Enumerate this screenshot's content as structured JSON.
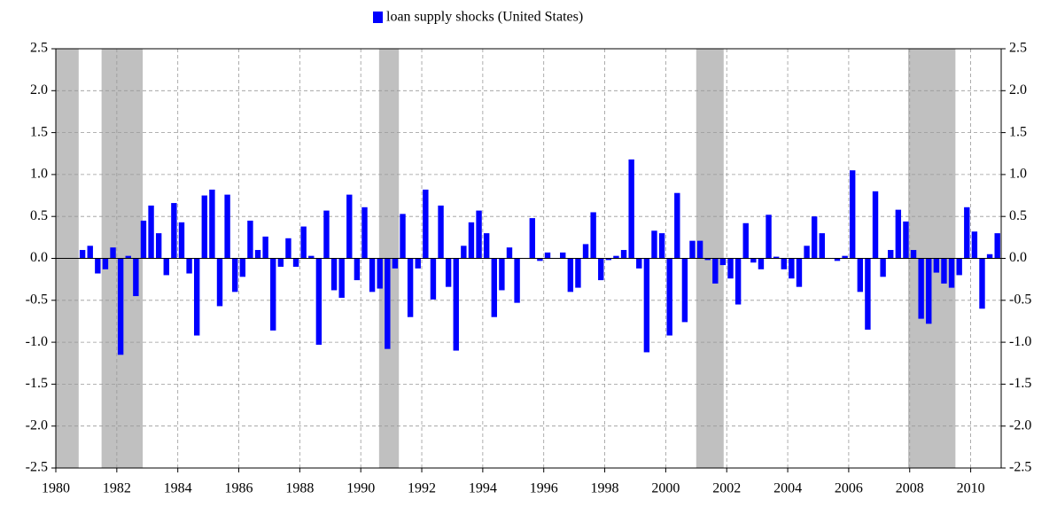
{
  "chart_data": {
    "type": "bar",
    "series": [
      {
        "name": "loan supply shocks (United States)",
        "color": "#0000ff",
        "values": [
          0.1,
          0.15,
          -0.18,
          -0.13,
          0.13,
          -1.15,
          0.03,
          -0.45,
          0.45,
          0.63,
          0.3,
          -0.2,
          0.66,
          0.43,
          -0.18,
          -0.92,
          0.75,
          0.82,
          -0.57,
          0.76,
          -0.4,
          -0.22,
          0.45,
          0.1,
          0.26,
          -0.86,
          -0.1,
          0.24,
          -0.1,
          0.38,
          0.03,
          -1.03,
          0.57,
          -0.38,
          -0.47,
          0.76,
          -0.26,
          0.61,
          -0.4,
          -0.36,
          -1.08,
          -0.12,
          0.53,
          -0.7,
          -0.12,
          0.82,
          -0.49,
          0.63,
          -0.34,
          -1.1,
          0.15,
          0.43,
          0.57,
          0.3,
          -0.7,
          -0.38,
          0.13,
          -0.53,
          0.48,
          -0.03,
          0.07,
          0.07,
          -0.4,
          -0.35,
          0.17,
          0.55,
          -0.26,
          -0.02,
          0.03,
          0.1,
          1.18,
          -0.12,
          -1.12,
          0.33,
          0.3,
          -0.92,
          0.78,
          -0.76,
          0.21,
          0.21,
          -0.02,
          -0.3,
          -0.08,
          -0.24,
          -0.55,
          0.42,
          -0.05,
          -0.13,
          0.52,
          0.02,
          -0.13,
          -0.24,
          -0.34,
          0.15,
          0.5,
          0.3,
          -0.03,
          0.03,
          1.05,
          -0.4,
          -0.85,
          0.8,
          -0.22,
          0.1,
          0.58,
          0.44,
          0.1,
          -0.72,
          -0.78,
          -0.17,
          -0.3,
          -0.35,
          -0.2,
          0.61,
          0.32,
          -0.6,
          0.05,
          0.3
        ]
      }
    ],
    "x": [
      1980.875,
      1981.125,
      1981.375,
      1981.625,
      1981.875,
      1982.125,
      1982.375,
      1982.625,
      1982.875,
      1983.125,
      1983.375,
      1983.625,
      1983.875,
      1984.125,
      1984.375,
      1984.625,
      1984.875,
      1985.125,
      1985.375,
      1985.625,
      1985.875,
      1986.125,
      1986.375,
      1986.625,
      1986.875,
      1987.125,
      1987.375,
      1987.625,
      1987.875,
      1988.125,
      1988.375,
      1988.625,
      1988.875,
      1989.125,
      1989.375,
      1989.625,
      1989.875,
      1990.125,
      1990.375,
      1990.625,
      1990.875,
      1991.125,
      1991.375,
      1991.625,
      1991.875,
      1992.125,
      1992.375,
      1992.625,
      1992.875,
      1993.125,
      1993.375,
      1993.625,
      1993.875,
      1994.125,
      1994.375,
      1994.625,
      1994.875,
      1995.125,
      1995.625,
      1995.875,
      1996.125,
      1996.625,
      1996.875,
      1997.125,
      1997.375,
      1997.625,
      1997.875,
      1998.125,
      1998.375,
      1998.625,
      1998.875,
      1999.125,
      1999.375,
      1999.625,
      1999.875,
      2000.125,
      2000.375,
      2000.625,
      2000.875,
      2001.125,
      2001.375,
      2001.625,
      2001.875,
      2002.125,
      2002.375,
      2002.625,
      2002.875,
      2003.125,
      2003.375,
      2003.625,
      2003.875,
      2004.125,
      2004.375,
      2004.625,
      2004.875,
      2005.125,
      2005.625,
      2005.875,
      2006.125,
      2006.375,
      2006.625,
      2006.875,
      2007.125,
      2007.375,
      2007.625,
      2007.875,
      2008.125,
      2008.375,
      2008.625,
      2008.875,
      2009.125,
      2009.375,
      2009.625,
      2009.875,
      2010.125,
      2010.375,
      2010.625,
      2010.875
    ],
    "shaded_periods": [
      [
        1980,
        1980.75
      ],
      [
        1981.5,
        1982.85
      ],
      [
        1990.6,
        1991.25
      ],
      [
        2001,
        2001.9
      ],
      [
        2007.95,
        2009.5
      ]
    ],
    "shade_color": "#c0c0c0",
    "xlim": [
      1980,
      2011
    ],
    "xticks": [
      1980,
      1982,
      1984,
      1986,
      1988,
      1990,
      1992,
      1994,
      1996,
      1998,
      2000,
      2002,
      2004,
      2006,
      2008,
      2010
    ],
    "ylim": [
      -2.5,
      2.5
    ],
    "yticks": [
      -2.5,
      {
        "value": -2,
        "label": "-2.0"
      },
      -1.5,
      {
        "value": -1,
        "label": "-1.0"
      },
      -0.5,
      {
        "value": 0,
        "label": "0.0"
      },
      0.5,
      {
        "value": 1,
        "label": "1.0"
      },
      1.5,
      {
        "value": 2,
        "label": "2.0"
      },
      2.5
    ],
    "y2lim": [
      -2.5,
      2.5
    ],
    "y2ticks": [
      -2.5,
      {
        "value": -2,
        "label": "-2.0"
      },
      -1.5,
      {
        "value": -1,
        "label": "-1.0"
      },
      -0.5,
      {
        "value": 0,
        "label": "0.0"
      },
      0.5,
      {
        "value": 1,
        "label": "1.0"
      },
      1.5,
      {
        "value": 2,
        "label": "2.0"
      },
      2.5
    ],
    "grid": true,
    "legend": "top"
  }
}
